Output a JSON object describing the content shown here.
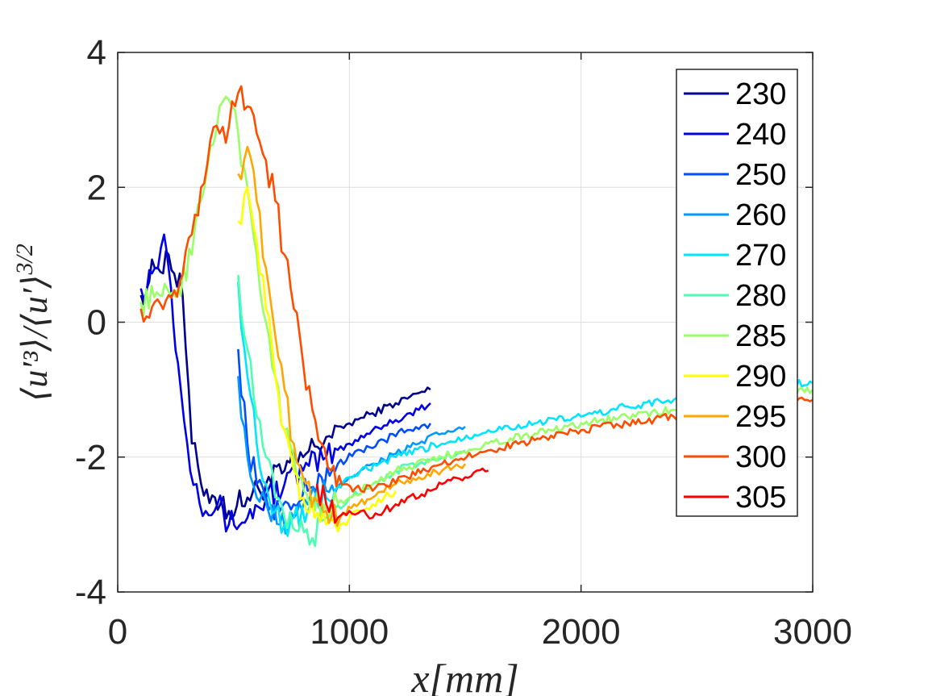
{
  "chart_data": {
    "type": "line",
    "xlabel": "x[mm]",
    "ylabel": "⟨u′³⟩/⟨u′⟩^{3/2}",
    "ylabel_main": "⟨u′³⟩/⟨u′⟩",
    "ylabel_sup": "3/2",
    "xlim": [
      0,
      3000
    ],
    "ylim": [
      -4,
      4
    ],
    "x_ticks": [
      0,
      1000,
      2000,
      3000
    ],
    "x_tick_labels": [
      "0",
      "1000",
      "2000",
      "3000"
    ],
    "y_ticks": [
      -4,
      -2,
      0,
      2,
      4
    ],
    "y_tick_labels": [
      "-4",
      "-2",
      "0",
      "2",
      "4"
    ],
    "grid": true,
    "legend_position": "top-right",
    "series": [
      {
        "name": "230",
        "color": "#00008f",
        "x": [
          100,
          160,
          220,
          280,
          320,
          360,
          420,
          480,
          560,
          640,
          720,
          800,
          900,
          1000,
          1100,
          1200,
          1300,
          1350
        ],
        "y": [
          0.4,
          0.8,
          1.0,
          0.4,
          -1.8,
          -2.4,
          -2.6,
          -2.8,
          -2.6,
          -2.4,
          -2.2,
          -2.0,
          -1.7,
          -1.5,
          -1.35,
          -1.2,
          -1.05,
          -1.0
        ]
      },
      {
        "name": "240",
        "color": "#0000e6",
        "x": [
          100,
          160,
          200,
          230,
          260,
          300,
          340,
          380,
          430,
          480,
          560,
          640,
          720,
          800,
          900,
          1000,
          1100,
          1200,
          1300,
          1350
        ],
        "y": [
          0.5,
          0.8,
          1.3,
          0.5,
          -0.6,
          -1.8,
          -2.4,
          -2.8,
          -2.7,
          -3.0,
          -2.9,
          -2.6,
          -2.4,
          -2.2,
          -2.0,
          -1.8,
          -1.6,
          -1.45,
          -1.3,
          -1.2
        ]
      },
      {
        "name": "250",
        "color": "#004cff",
        "x": [
          520,
          560,
          600,
          640,
          700,
          760,
          820,
          880,
          950,
          1050,
          1150,
          1250,
          1350
        ],
        "y": [
          -0.4,
          -1.8,
          -2.4,
          -2.6,
          -2.8,
          -2.7,
          -2.5,
          -2.3,
          -2.1,
          -1.9,
          -1.75,
          -1.6,
          -1.5
        ]
      },
      {
        "name": "260",
        "color": "#0099ff",
        "x": [
          520,
          560,
          600,
          650,
          700,
          760,
          820,
          900,
          1000,
          1100,
          1200,
          1300,
          1400,
          1500
        ],
        "y": [
          -0.8,
          -2.0,
          -2.6,
          -2.8,
          -3.0,
          -2.9,
          -2.7,
          -2.5,
          -2.3,
          -2.1,
          -1.95,
          -1.8,
          -1.65,
          -1.55
        ]
      },
      {
        "name": "270",
        "color": "#00e5ff",
        "x": [
          520,
          560,
          600,
          640,
          680,
          720,
          760,
          820,
          900,
          1000,
          1200,
          1400,
          1600,
          1800,
          2000,
          2200,
          2400,
          2600,
          2800,
          3000
        ],
        "y": [
          0.6,
          -0.8,
          -1.8,
          -2.4,
          -2.8,
          -3.0,
          -2.9,
          -2.8,
          -2.6,
          -2.3,
          -2.0,
          -1.8,
          -1.6,
          -1.5,
          -1.4,
          -1.25,
          -1.15,
          -1.05,
          -0.95,
          -0.9
        ]
      },
      {
        "name": "280",
        "color": "#4dffb2",
        "x": [
          520,
          560,
          600,
          640,
          680,
          720,
          780,
          840,
          900,
          1000,
          1100,
          1200,
          1300,
          1400,
          1500
        ],
        "y": [
          0.7,
          -0.4,
          -1.4,
          -2.0,
          -2.6,
          -2.9,
          -3.1,
          -3.2,
          -2.9,
          -2.6,
          -2.4,
          -2.2,
          -2.1,
          -2.0,
          -1.9
        ]
      },
      {
        "name": "285",
        "color": "#99ff66",
        "x": [
          100,
          180,
          260,
          320,
          360,
          400,
          440,
          480,
          520,
          560,
          600,
          640,
          680,
          720,
          780,
          840,
          900,
          1000,
          1100,
          1200,
          1400,
          1600,
          1800,
          2000,
          2200,
          2400,
          2600,
          2800,
          3000
        ],
        "y": [
          0.3,
          0.4,
          0.5,
          1.0,
          1.8,
          2.6,
          3.2,
          3.3,
          2.8,
          2.0,
          1.0,
          0.0,
          -0.8,
          -1.6,
          -2.3,
          -2.6,
          -2.8,
          -2.6,
          -2.4,
          -2.2,
          -2.0,
          -1.8,
          -1.65,
          -1.5,
          -1.4,
          -1.3,
          -1.2,
          -1.1,
          -1.0
        ]
      },
      {
        "name": "290",
        "color": "#ffff00",
        "x": [
          520,
          560,
          600,
          640,
          680,
          720,
          760,
          800,
          850,
          900,
          950,
          1000,
          1050,
          1100,
          1150,
          1200
        ],
        "y": [
          1.5,
          2.0,
          1.2,
          0.2,
          -0.8,
          -1.6,
          -2.2,
          -2.6,
          -2.9,
          -3.0,
          -3.1,
          -2.9,
          -2.8,
          -2.7,
          -2.6,
          -2.5
        ]
      },
      {
        "name": "295",
        "color": "#ffa600",
        "x": [
          520,
          560,
          600,
          640,
          680,
          720,
          760,
          800,
          850,
          900,
          960,
          1020,
          1100,
          1200,
          1300,
          1400,
          1500
        ],
        "y": [
          2.2,
          2.6,
          1.8,
          0.8,
          -0.2,
          -1.0,
          -1.8,
          -2.3,
          -2.6,
          -2.8,
          -2.9,
          -2.7,
          -2.6,
          -2.4,
          -2.3,
          -2.2,
          -2.1
        ]
      },
      {
        "name": "300",
        "color": "#ff4d00",
        "x": [
          100,
          160,
          220,
          280,
          320,
          360,
          400,
          440,
          480,
          520,
          560,
          600,
          640,
          680,
          720,
          760,
          800,
          840,
          880,
          920,
          980,
          1050,
          1150,
          1250,
          1400,
          1600,
          1800,
          2000,
          2200,
          2400,
          2600,
          2800,
          3000
        ],
        "y": [
          0.2,
          0.3,
          0.4,
          0.7,
          1.3,
          2.0,
          2.7,
          2.8,
          2.9,
          3.4,
          3.2,
          2.8,
          2.4,
          1.8,
          1.0,
          0.2,
          -0.6,
          -1.3,
          -1.8,
          -2.2,
          -2.4,
          -2.5,
          -2.4,
          -2.3,
          -2.1,
          -1.9,
          -1.75,
          -1.6,
          -1.5,
          -1.4,
          -1.3,
          -1.25,
          -1.15
        ]
      },
      {
        "name": "305",
        "color": "#ff0000",
        "x": [
          860,
          900,
          950,
          1000,
          1050,
          1100,
          1150,
          1200,
          1250,
          1300,
          1350,
          1400,
          1450,
          1500,
          1550,
          1600
        ],
        "y": [
          -2.4,
          -2.7,
          -2.9,
          -2.8,
          -2.8,
          -2.9,
          -2.8,
          -2.7,
          -2.6,
          -2.6,
          -2.5,
          -2.4,
          -2.3,
          -2.3,
          -2.2,
          -2.2
        ]
      }
    ]
  }
}
